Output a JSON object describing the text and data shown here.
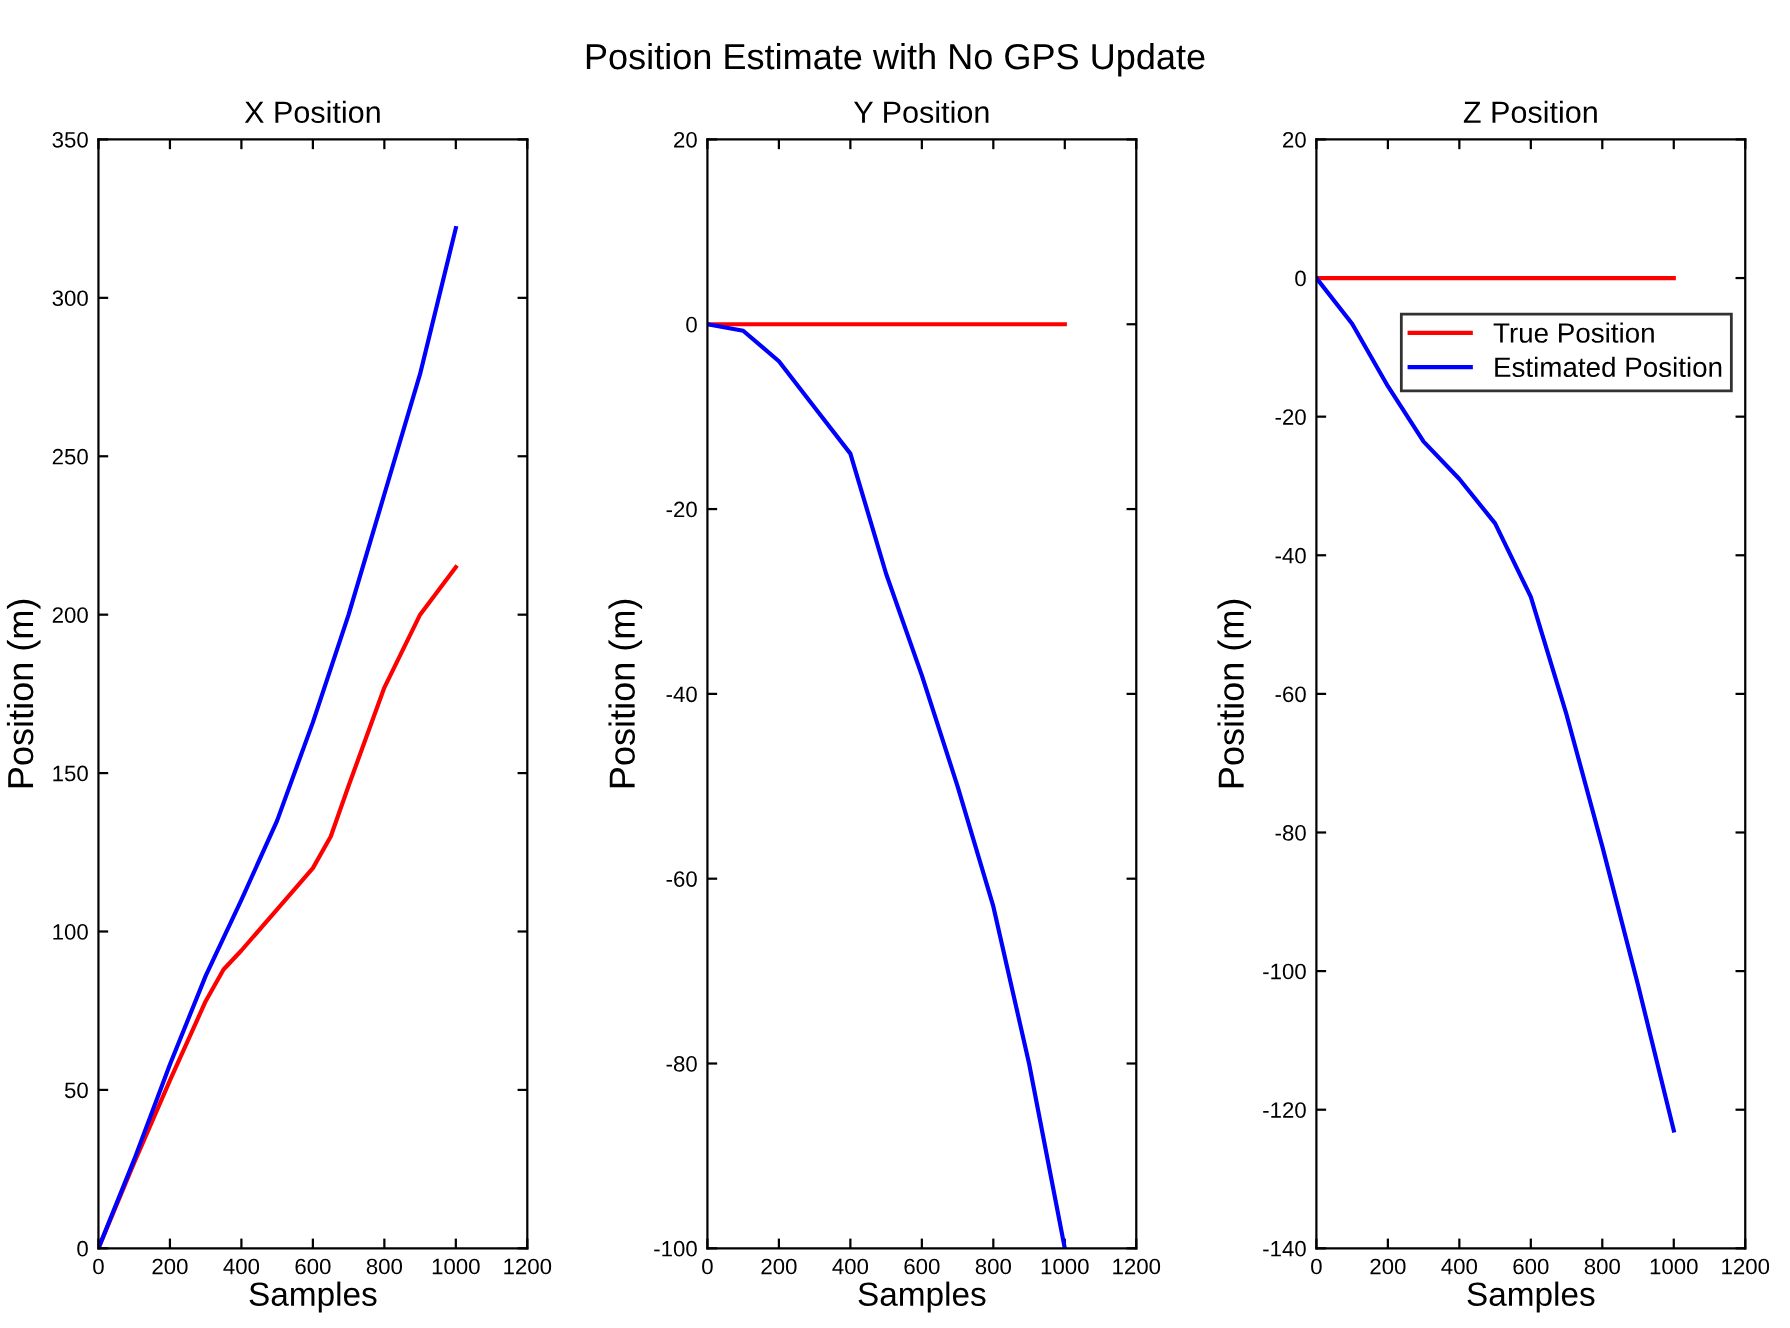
{
  "chart_data": [
    {
      "type": "line",
      "title": "X Position",
      "xlabel": "Samples",
      "ylabel": "Position (m)",
      "annotations": [
        "Position Estimate with No GPS Update"
      ],
      "xlim": [
        0,
        1200
      ],
      "xticks": [
        0,
        200,
        400,
        600,
        800,
        1000,
        1200
      ],
      "ylim": [
        0,
        350
      ],
      "yticks": [
        0,
        50,
        100,
        150,
        200,
        250,
        300,
        350
      ],
      "grid": false,
      "legend": false,
      "series": [
        {
          "color": "#ff0000",
          "x": [
            0,
            100,
            200,
            300,
            350,
            400,
            500,
            600,
            650,
            700,
            800,
            900,
            1000
          ],
          "values": [
            0,
            27,
            53,
            78,
            88,
            94,
            107,
            120,
            130,
            146,
            177,
            200,
            215
          ]
        },
        {
          "color": "#0000ff",
          "x": [
            0,
            100,
            200,
            300,
            400,
            500,
            600,
            700,
            800,
            900,
            1000
          ],
          "values": [
            0,
            28,
            58,
            86,
            110,
            135,
            166,
            200,
            238,
            276,
            322
          ]
        }
      ]
    },
    {
      "type": "line",
      "title": "Y Position",
      "xlabel": "Samples",
      "ylabel": "Position (m)",
      "xlim": [
        0,
        1200
      ],
      "xticks": [
        0,
        200,
        400,
        600,
        800,
        1000,
        1200
      ],
      "ylim": [
        -100,
        20
      ],
      "yticks": [
        -100,
        -80,
        -60,
        -40,
        -20,
        0,
        20
      ],
      "grid": false,
      "legend": false,
      "series": [
        {
          "color": "#ff0000",
          "x": [
            0,
            1000
          ],
          "values": [
            0,
            0
          ]
        },
        {
          "color": "#0000ff",
          "x": [
            0,
            100,
            200,
            300,
            400,
            500,
            600,
            700,
            800,
            900,
            1000
          ],
          "values": [
            0,
            -0.7,
            -4,
            -9,
            -14,
            -27,
            -38,
            -50,
            -63,
            -80,
            -100
          ]
        }
      ]
    },
    {
      "type": "line",
      "title": "Z Position",
      "xlabel": "Samples",
      "ylabel": "Position (m)",
      "xlim": [
        0,
        1200
      ],
      "xticks": [
        0,
        200,
        400,
        600,
        800,
        1000,
        1200
      ],
      "ylim": [
        -140,
        20
      ],
      "yticks": [
        -140,
        -120,
        -100,
        -80,
        -60,
        -40,
        -20,
        0,
        20
      ],
      "grid": false,
      "legend": "top right",
      "series": [
        {
          "name": "True Position",
          "color": "#ff0000",
          "x": [
            0,
            1000
          ],
          "values": [
            0,
            0
          ]
        },
        {
          "name": "Estimated Position",
          "color": "#0000ff",
          "x": [
            0,
            100,
            200,
            300,
            400,
            500,
            600,
            700,
            800,
            900,
            1000
          ],
          "values": [
            0,
            -6.6,
            -15.6,
            -23.6,
            -29,
            -35.4,
            -46,
            -63,
            -82,
            -102,
            -123
          ]
        }
      ]
    }
  ]
}
